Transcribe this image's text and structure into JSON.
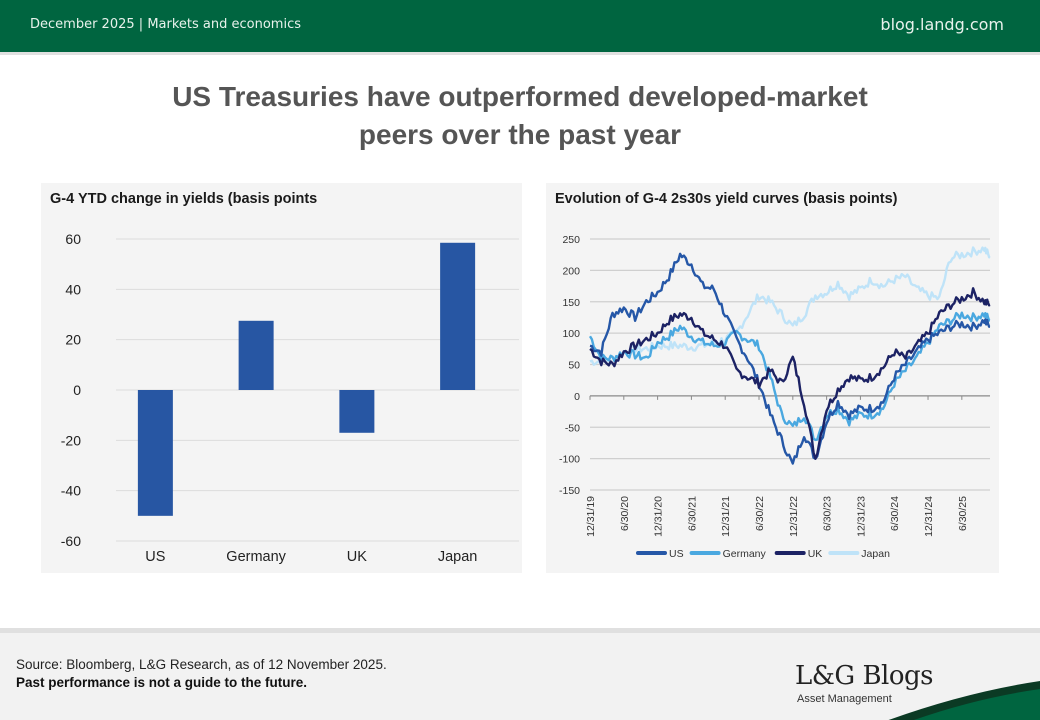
{
  "header": {
    "date": "December 2025",
    "separator": "|",
    "category": "Markets and economics",
    "site": "blog.landg.com"
  },
  "page_title_line1": "US Treasuries have outperformed developed-market",
  "page_title_line2": "peers over the past year",
  "footer": {
    "source": "Source: Bloomberg, L&G Research, as of 12 November 2025.",
    "disclaimer": "Past performance is not a guide to the future.",
    "logo": "L&G Blogs",
    "logo_sub": "Asset Management"
  },
  "colors": {
    "brand_green": "#006540",
    "bar": "#2756a3",
    "us": "#2557a7",
    "germany": "#4aa8e0",
    "uk": "#1c2264",
    "japan": "#bfe3f8"
  },
  "chart_data": [
    {
      "type": "bar",
      "title": "G-4 YTD change in yields (basis points",
      "categories": [
        "US",
        "Germany",
        "UK",
        "Japan"
      ],
      "values": [
        -50,
        27.5,
        -17,
        58.5
      ],
      "ylim": [
        -60,
        60
      ],
      "yticks": [
        60,
        40,
        20,
        0,
        -20,
        -40,
        -60
      ],
      "xlabel": "",
      "ylabel": "",
      "grid": true
    },
    {
      "type": "line",
      "title": "Evolution of G-4 2s30s yield curves (basis points)",
      "ylim": [
        -150,
        250
      ],
      "yticks": [
        250,
        200,
        150,
        100,
        50,
        0,
        -50,
        -100,
        -150
      ],
      "xticks": [
        "12/31/19",
        "6/30/20",
        "12/31/20",
        "6/30/21",
        "12/31/21",
        "6/30/22",
        "12/31/22",
        "6/30/23",
        "12/31/23",
        "6/30/24",
        "12/31/24",
        "6/30/25"
      ],
      "x_range": [
        "12/31/19",
        "11/12/25"
      ],
      "x_unit": "months since 12/31/19",
      "x": [
        0,
        2,
        4,
        6,
        8,
        10,
        12,
        14,
        16,
        18,
        20,
        22,
        24,
        26,
        28,
        30,
        32,
        34,
        36,
        38,
        40,
        42,
        44,
        46,
        48,
        50,
        52,
        54,
        56,
        58,
        60,
        62,
        64,
        66,
        68,
        70,
        71
      ],
      "legend": "bottom",
      "grid": true,
      "series": [
        {
          "name": "US",
          "values": [
            80,
            70,
            130,
            140,
            125,
            150,
            165,
            190,
            225,
            210,
            175,
            170,
            130,
            90,
            60,
            20,
            -30,
            -70,
            -110,
            -60,
            -100,
            -40,
            -10,
            -30,
            -20,
            -20,
            -10,
            30,
            50,
            70,
            90,
            100,
            110,
            115,
            110,
            120,
            110
          ]
        },
        {
          "name": "Germany",
          "values": [
            95,
            60,
            60,
            70,
            65,
            60,
            85,
            95,
            110,
            95,
            85,
            80,
            85,
            100,
            90,
            80,
            30,
            -30,
            -50,
            -30,
            -70,
            -30,
            -20,
            -40,
            -30,
            -30,
            -20,
            20,
            40,
            60,
            85,
            110,
            120,
            130,
            125,
            130,
            120
          ]
        },
        {
          "name": "UK",
          "values": [
            75,
            55,
            50,
            70,
            80,
            90,
            100,
            120,
            130,
            125,
            100,
            90,
            80,
            40,
            30,
            20,
            40,
            20,
            60,
            -10,
            -100,
            -20,
            10,
            30,
            25,
            30,
            45,
            70,
            60,
            80,
            100,
            130,
            145,
            155,
            165,
            150,
            145
          ]
        },
        {
          "name": "Japan",
          "values": [
            55,
            55,
            60,
            70,
            75,
            75,
            80,
            80,
            80,
            78,
            80,
            85,
            90,
            100,
            130,
            160,
            150,
            130,
            110,
            130,
            160,
            165,
            180,
            160,
            170,
            185,
            175,
            185,
            190,
            170,
            160,
            155,
            220,
            225,
            230,
            235,
            220
          ]
        }
      ]
    }
  ]
}
